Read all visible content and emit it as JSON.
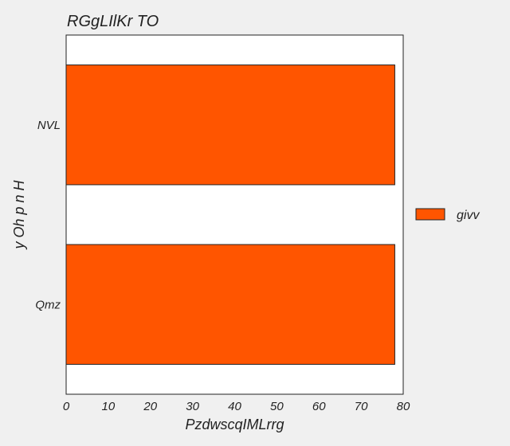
{
  "chart_data": {
    "type": "bar",
    "orientation": "horizontal",
    "title": "RGgLIlKr TO",
    "xlabel": "PzdwscqIMLrrg",
    "ylabel": "y Oh p n  H",
    "categories": [
      "NVL",
      "Qmz"
    ],
    "series": [
      {
        "name": "givv",
        "values": [
          78,
          78
        ],
        "color": "#ff5500"
      }
    ],
    "xlim": [
      0,
      80
    ],
    "xticks": [
      0,
      10,
      20,
      30,
      40,
      50,
      60,
      70,
      80
    ],
    "grid": false,
    "legend_position": "right"
  }
}
